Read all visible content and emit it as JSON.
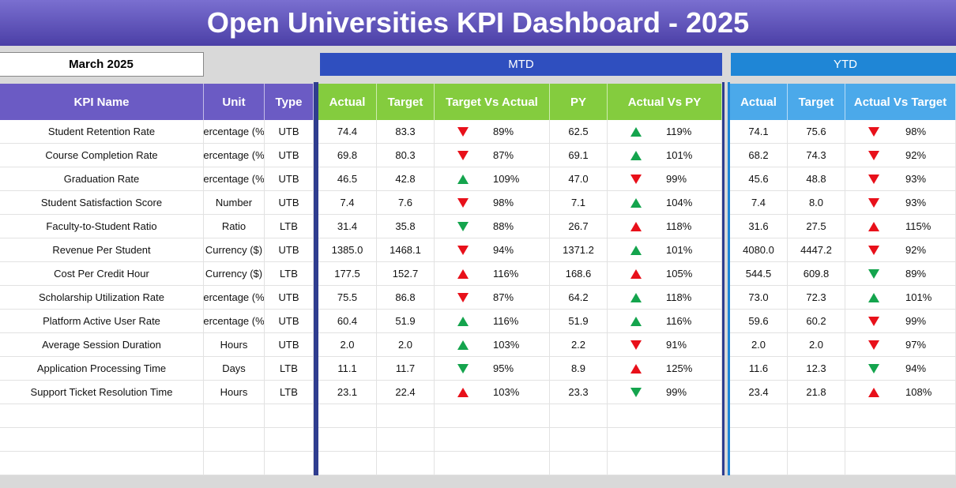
{
  "title": "Open Universities KPI Dashboard - 2025",
  "month": "March 2025",
  "mtd_label": "MTD",
  "ytd_label": "YTD",
  "table": {
    "header": [
      "KPI Name",
      "Unit",
      "Type",
      "Actual",
      "Target",
      "Target Vs Actual",
      "PY",
      "Actual Vs PY",
      "Actual",
      "Target",
      "Actual Vs Target"
    ],
    "rows": [
      [
        "Student Retention Rate",
        "ercentage (%",
        "UTB",
        "74.4",
        "83.3",
        "89%",
        "62.5",
        "119%",
        "74.1",
        "75.6",
        "98%"
      ],
      [
        "Course Completion Rate",
        "ercentage (%",
        "UTB",
        "69.8",
        "80.3",
        "87%",
        "69.1",
        "101%",
        "68.2",
        "74.3",
        "92%"
      ],
      [
        "Graduation Rate",
        "ercentage (%",
        "UTB",
        "46.5",
        "42.8",
        "109%",
        "47.0",
        "99%",
        "45.6",
        "48.8",
        "93%"
      ],
      [
        "Student Satisfaction Score",
        "Number",
        "UTB",
        "7.4",
        "7.6",
        "98%",
        "7.1",
        "104%",
        "7.4",
        "8.0",
        "93%"
      ],
      [
        "Faculty-to-Student Ratio",
        "Ratio",
        "LTB",
        "31.4",
        "35.8",
        "88%",
        "26.7",
        "118%",
        "31.6",
        "27.5",
        "115%"
      ],
      [
        "Revenue Per Student",
        "Currency ($)",
        "UTB",
        "1385.0",
        "1468.1",
        "94%",
        "1371.2",
        "101%",
        "4080.0",
        "4447.2",
        "92%"
      ],
      [
        "Cost Per Credit Hour",
        "Currency ($)",
        "LTB",
        "177.5",
        "152.7",
        "116%",
        "168.6",
        "105%",
        "544.5",
        "609.8",
        "89%"
      ],
      [
        "Scholarship Utilization Rate",
        "ercentage (%",
        "UTB",
        "75.5",
        "86.8",
        "87%",
        "64.2",
        "118%",
        "73.0",
        "72.3",
        "101%"
      ],
      [
        "Platform Active User Rate",
        "ercentage (%",
        "UTB",
        "60.4",
        "51.9",
        "116%",
        "51.9",
        "116%",
        "59.6",
        "60.2",
        "99%"
      ],
      [
        "Average Session Duration",
        "Hours",
        "UTB",
        "2.0",
        "2.0",
        "103%",
        "2.2",
        "91%",
        "2.0",
        "2.0",
        "97%"
      ],
      [
        "Application Processing Time",
        "Days",
        "LTB",
        "11.1",
        "11.7",
        "95%",
        "8.9",
        "125%",
        "11.6",
        "12.3",
        "94%"
      ],
      [
        "Support Ticket Resolution Time",
        "Hours",
        "LTB",
        "23.1",
        "22.4",
        "103%",
        "23.3",
        "99%",
        "23.4",
        "21.8",
        "108%"
      ]
    ]
  }
}
